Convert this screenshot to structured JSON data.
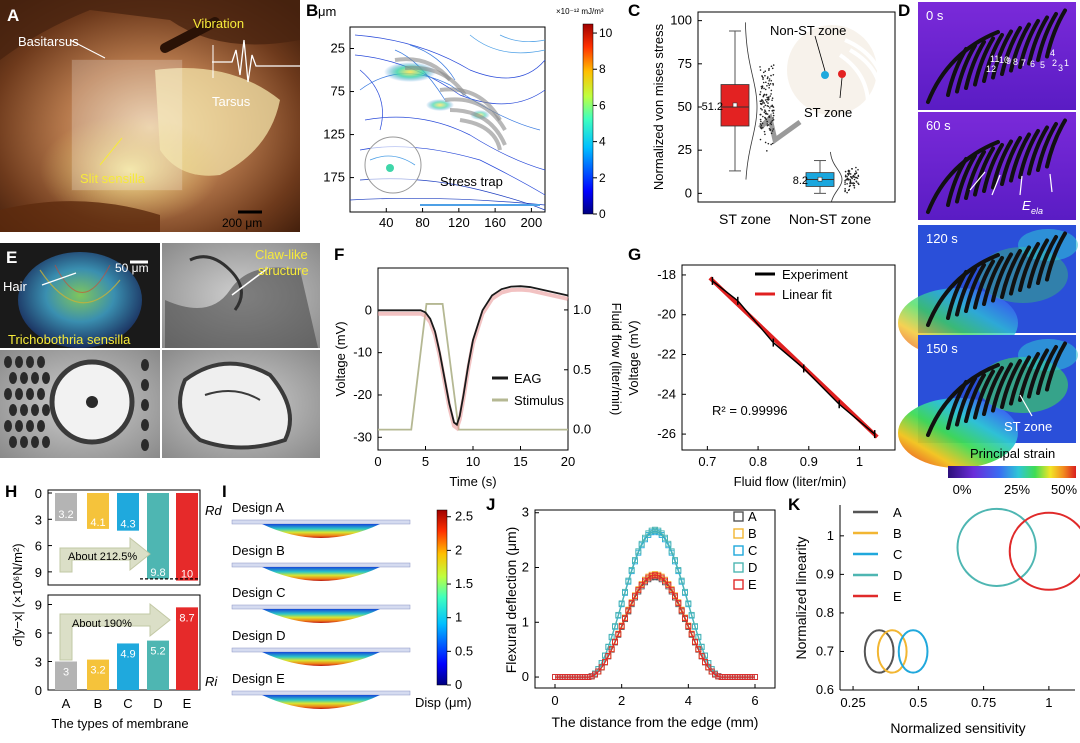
{
  "figure": {
    "panel_labels": [
      "A",
      "B",
      "C",
      "D",
      "E",
      "F",
      "G",
      "H",
      "I",
      "J",
      "K"
    ],
    "panel_A": {
      "labels": [
        "Basitarsus",
        "Vibration",
        "Tarsus",
        "Slit sensilla"
      ],
      "scale_bar": "200 μm"
    },
    "panel_E": {
      "labels": [
        "Hair",
        "Trichobothria sensilla",
        "Claw-like structure"
      ],
      "scale_bar": "50 μm"
    },
    "panel_D": {
      "time_labels": [
        "0 s",
        "60 s",
        "120 s",
        "150 s"
      ],
      "slit_numbers": [
        "11",
        "10",
        "9",
        "8",
        "7",
        "6",
        "5",
        "2",
        "1",
        "4",
        "3",
        "12"
      ],
      "energy_label": "E",
      "energy_sub": "ela",
      "st_zone_label": "ST zone",
      "colorbar_title": "Principal strain",
      "colorbar_ticks": [
        "0%",
        "25%",
        "50%"
      ]
    },
    "panel_B": {
      "colorbar_unit": "×10⁻¹² mJ/m³",
      "annotation": "Stress trap"
    },
    "panel_C": {
      "st_zone_label": "ST zone",
      "non_st_zone_label": "Non-ST zone"
    }
  },
  "chart_data": [
    {
      "panel": "B",
      "type": "heatmap",
      "title": "",
      "xlabel": "",
      "ylabel": "μm",
      "x_ticks": [
        40,
        80,
        120,
        160,
        200
      ],
      "y_ticks": [
        25,
        75,
        125,
        175
      ],
      "xlim": [
        0,
        215
      ],
      "ylim": [
        0,
        215
      ],
      "colorbar": {
        "min": 0,
        "max": 10.5,
        "ticks": [
          0,
          2,
          4,
          6,
          8,
          10
        ],
        "unit": "×10⁻¹² mJ/m³"
      }
    },
    {
      "panel": "C",
      "type": "box",
      "ylabel": "Normalized von mises stress",
      "categories": [
        "ST zone",
        "Non-ST zone"
      ],
      "y_ticks": [
        0,
        25,
        50,
        75,
        100
      ],
      "ylim": [
        -5,
        105
      ],
      "boxes": [
        {
          "name": "ST zone",
          "min": 13,
          "q1": 39,
          "median": 50,
          "mean": 51.2,
          "q3": 63,
          "max": 94,
          "label": "51.2",
          "color": "#e32222"
        },
        {
          "name": "Non-ST zone",
          "min": 0,
          "q1": 4,
          "median": 8,
          "mean": 8.2,
          "q3": 12,
          "max": 19,
          "label": "8.2",
          "color": "#1aa7de"
        }
      ]
    },
    {
      "panel": "F",
      "type": "line",
      "xlabel": "Time (s)",
      "ylabel": "Voltage (mV)",
      "y2label": "Fluid flow (liter/min)",
      "xlim": [
        0,
        20
      ],
      "ylim": [
        -33,
        10
      ],
      "y2lim": [
        -0.17,
        1.35
      ],
      "x_ticks": [
        0,
        5,
        10,
        15,
        20
      ],
      "y_ticks": [
        0,
        -10,
        -20,
        -30
      ],
      "y2_ticks": [
        0.0,
        0.5,
        1.0
      ],
      "y2_tick_labels": [
        "0.0",
        "0.5",
        "1.0"
      ],
      "legend": [
        "EAG",
        "Stimulus"
      ],
      "series": [
        {
          "name": "EAG",
          "axis": "left",
          "color": "#1a1a1a",
          "x": [
            0,
            4.5,
            5,
            5.5,
            6,
            6.5,
            7,
            7.5,
            8,
            8.3,
            8.6,
            9,
            9.5,
            10,
            11,
            12,
            13,
            14,
            15,
            16,
            17,
            18,
            19,
            20
          ],
          "y": [
            0,
            0,
            -0.5,
            -2,
            -5,
            -10,
            -16,
            -22,
            -26.5,
            -27,
            -25,
            -20,
            -13,
            -7,
            0,
            3.5,
            5,
            5.6,
            5.7,
            5.5,
            5,
            4.5,
            4,
            3.5
          ]
        },
        {
          "name": "Stimulus",
          "axis": "right",
          "color": "#b5b893",
          "x": [
            0,
            3.5,
            5.1,
            6.8,
            8.5,
            20
          ],
          "y": [
            0,
            0,
            1.05,
            1.05,
            0,
            0
          ]
        }
      ]
    },
    {
      "panel": "G",
      "type": "line",
      "xlabel": "Fluid flow (liter/min)",
      "ylabel": "Voltage (mV)",
      "xlim": [
        0.65,
        1.07
      ],
      "ylim": [
        -26.8,
        -17.5
      ],
      "x_ticks": [
        0.7,
        0.8,
        0.9,
        1.0
      ],
      "y_ticks": [
        -18,
        -20,
        -22,
        -24,
        -26
      ],
      "annotation": "R² = 0.99996",
      "legend": [
        "Experiment",
        "Linear fit"
      ],
      "series": [
        {
          "name": "Experiment",
          "color": "#000000",
          "x": [
            0.71,
            0.76,
            0.83,
            0.89,
            0.96,
            1.03
          ],
          "y": [
            -18.3,
            -19.3,
            -21.4,
            -22.7,
            -24.5,
            -26.0
          ]
        },
        {
          "name": "Linear fit",
          "color": "#e02020",
          "x": [
            0.705,
            1.035
          ],
          "y": [
            -18.15,
            -26.15
          ]
        }
      ]
    },
    {
      "panel": "H",
      "type": "bar",
      "xlabel": "The types of membrane",
      "ylabel": "σ̄|y−x| (×10⁶N/m²)",
      "categories": [
        "A",
        "B",
        "C",
        "D",
        "E"
      ],
      "colors": [
        "#b4b4b4",
        "#f5c33b",
        "#1fa9dd",
        "#4eb6b2",
        "#e62a2a"
      ],
      "series": [
        {
          "name": "Rd",
          "values": [
            3.2,
            4.1,
            4.3,
            9.8,
            10
          ],
          "ylim": [
            0,
            10.5
          ],
          "y_ticks": [
            0,
            3,
            6,
            9
          ],
          "annotation": "About 212.5%"
        },
        {
          "name": "Ri",
          "values": [
            3.0,
            3.2,
            4.9,
            5.2,
            8.7
          ],
          "ylim": [
            0,
            10
          ],
          "y_ticks": [
            0,
            3,
            6,
            9
          ],
          "annotation": "About 190%"
        }
      ]
    },
    {
      "panel": "I",
      "type": "heatmap",
      "designs": [
        "Design A",
        "Design B",
        "Design C",
        "Design D",
        "Design E"
      ],
      "colorbar": {
        "min": 0,
        "max": 2.6,
        "ticks": [
          0,
          0.5,
          1,
          1.5,
          2,
          2.5
        ],
        "tick_labels": [
          "0",
          "0.5",
          "1",
          "1.5",
          "2",
          "2.5"
        ],
        "label": "Disp (μm)"
      }
    },
    {
      "panel": "J",
      "type": "line",
      "xlabel": "The distance from the edge (mm)",
      "ylabel": "Flexural deflection (μm)",
      "xlim": [
        -0.6,
        6.6
      ],
      "ylim": [
        -0.2,
        3.05
      ],
      "x_ticks": [
        0,
        2,
        4,
        6
      ],
      "y_ticks": [
        0,
        1,
        2,
        3
      ],
      "legend": [
        "A",
        "B",
        "C",
        "D",
        "E"
      ],
      "series": [
        {
          "name": "A",
          "color": "#555555",
          "peak": 1.83
        },
        {
          "name": "B",
          "color": "#f2b632",
          "peak": 1.88
        },
        {
          "name": "C",
          "color": "#20a8dc",
          "peak": 2.66
        },
        {
          "name": "D",
          "color": "#4eb6b2",
          "peak": 2.69
        },
        {
          "name": "E",
          "color": "#e02a2a",
          "peak": 1.86
        }
      ],
      "profile": {
        "x_start": 0,
        "x_end": 6,
        "flat_left": 1,
        "flat_right": 5,
        "center": 3
      }
    },
    {
      "panel": "K",
      "type": "scatter",
      "xlabel": "Normalized sensitivity",
      "ylabel": "Normalized linearity",
      "xlim": [
        0.2,
        1.1
      ],
      "ylim": [
        0.6,
        1.08
      ],
      "x_ticks": [
        0.25,
        0.5,
        0.75,
        1
      ],
      "x_tick_labels": [
        "0.25",
        "0.5",
        "0.75",
        "1"
      ],
      "y_ticks": [
        0.6,
        0.7,
        0.8,
        0.9,
        1
      ],
      "y_tick_labels": [
        "0.6",
        "0.7",
        "0.8",
        "0.9",
        "1"
      ],
      "legend": [
        "A",
        "B",
        "C",
        "D",
        "E"
      ],
      "series": [
        {
          "name": "A",
          "color": "#555555",
          "x": 0.35,
          "y": 0.7
        },
        {
          "name": "B",
          "color": "#f2b632",
          "x": 0.4,
          "y": 0.7
        },
        {
          "name": "C",
          "color": "#20a8dc",
          "x": 0.48,
          "y": 0.7
        },
        {
          "name": "D",
          "color": "#4eb6b2",
          "x": 0.8,
          "y": 0.97
        },
        {
          "name": "E",
          "color": "#e02a2a",
          "x": 1.0,
          "y": 0.96
        }
      ]
    }
  ]
}
